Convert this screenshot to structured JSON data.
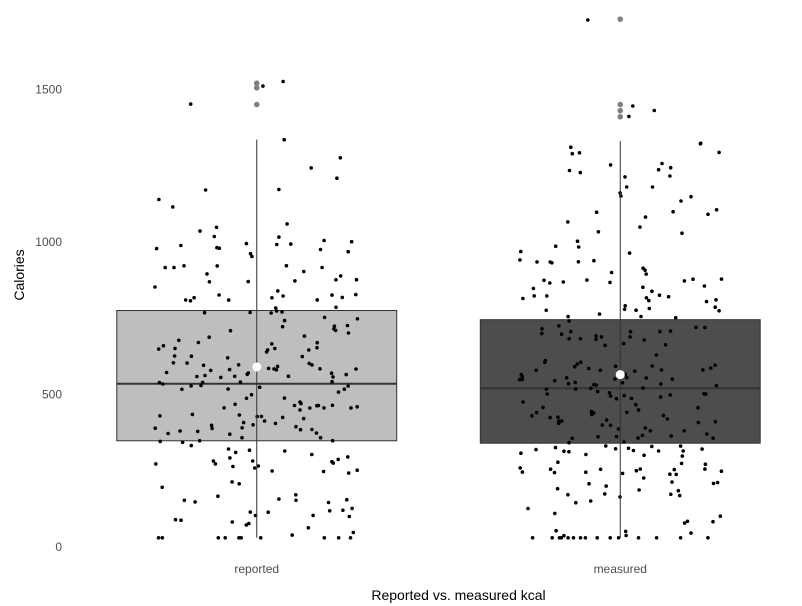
{
  "chart_data": {
    "type": "boxplot",
    "title": "",
    "xlabel": "Reported vs. measured kcal",
    "ylabel": "Calories",
    "ylim": [
      -10,
      1760
    ],
    "y_ticks": [
      0,
      500,
      1000,
      1500
    ],
    "y_tick_labels": [
      "0",
      "500",
      "1000",
      "1500"
    ],
    "grid": false,
    "legend": "none",
    "categories": [
      "reported",
      "measured"
    ],
    "series": [
      {
        "category": "reported",
        "fill": "#bebebe",
        "q1": 348,
        "median": 535,
        "q3": 775,
        "whisker_low": 30,
        "whisker_high": 1335,
        "mean": 590,
        "outliers": [
          1450,
          1505,
          1520
        ],
        "point_count": 230
      },
      {
        "category": "measured",
        "fill": "#4d4d4d",
        "q1": 340,
        "median": 520,
        "q3": 745,
        "whisker_low": 30,
        "whisker_high": 1330,
        "mean": 565,
        "outliers": [
          1410,
          1430,
          1450,
          1730
        ],
        "point_count": 260
      }
    ],
    "mean_marker_color": "#ffffff",
    "point_color": "#000000",
    "outlier_color": "#808080"
  }
}
